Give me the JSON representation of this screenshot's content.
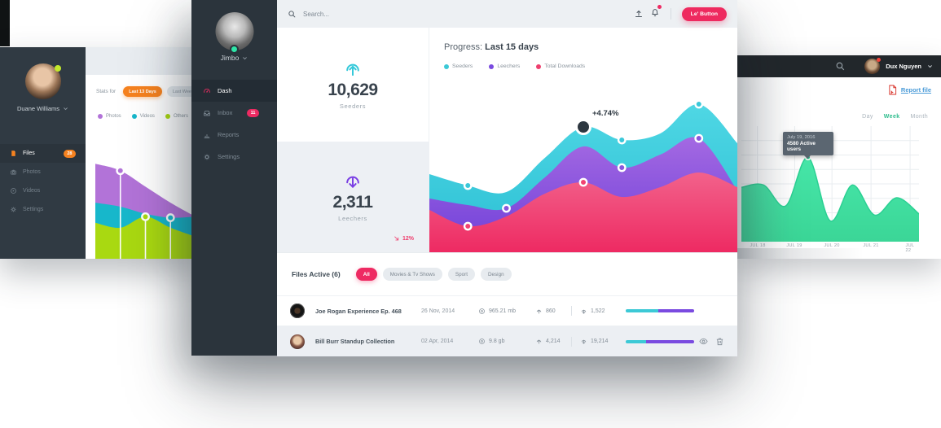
{
  "colors": {
    "accent_pink": "#ee2a62",
    "accent_cyan": "#3cc9d6",
    "accent_purple": "#7a4be0",
    "accent_orange": "#f6821f",
    "accent_green": "#3fe0a3",
    "accent_lime": "#a9d911",
    "sidebar_dark": "#2b343c",
    "header_dark": "#22272b"
  },
  "back_left_panel": {
    "user": {
      "name": "Duane Williams"
    },
    "menu": [
      {
        "label": "Files",
        "badge": "28",
        "icon": "file-icon"
      },
      {
        "label": "Photos",
        "icon": "camera-icon"
      },
      {
        "label": "Videos",
        "icon": "play-circle-icon"
      },
      {
        "label": "Settings",
        "icon": "gear-icon"
      }
    ],
    "stats_for": "Stats for",
    "range_buttons": [
      {
        "label": "Last 13 Days",
        "active": true
      },
      {
        "label": "Last Week",
        "active": false
      }
    ],
    "legend": [
      {
        "label": "Photos",
        "color": "#b273d8"
      },
      {
        "label": "Videos",
        "color": "#17b7cb"
      },
      {
        "label": "Others",
        "color": "#a9d911"
      }
    ]
  },
  "main_panel": {
    "sidebar": {
      "user": "Jimbo",
      "menu": [
        {
          "label": "Dash",
          "icon": "gauge-icon",
          "active": true
        },
        {
          "label": "Inbox",
          "icon": "inbox-icon",
          "badge": "11"
        },
        {
          "label": "Reports",
          "icon": "bar-chart-icon"
        },
        {
          "label": "Settings",
          "icon": "gear-icon"
        }
      ]
    },
    "topbar": {
      "search_placeholder": "Search...",
      "action_button": "Le' Button"
    },
    "stats": {
      "seeders_value": "10,629",
      "seeders_label": "Seeders",
      "leechers_value": "2,311",
      "leechers_label": "Leechers",
      "leechers_trend": "12%"
    },
    "progress": {
      "title_prefix": "Progress:",
      "title_range": "Last 15 days",
      "legend": [
        {
          "label": "Seeders",
          "color": "#3cc9d6"
        },
        {
          "label": "Leechers",
          "color": "#7a4be0"
        },
        {
          "label": "Total Downloads",
          "color": "#ee3f6e"
        }
      ],
      "annotation": "+4.74%"
    },
    "files": {
      "title": "Files Active (6)",
      "filters": [
        {
          "label": "All",
          "active": true
        },
        {
          "label": "Movies & Tv Shows",
          "active": false
        },
        {
          "label": "Sport",
          "active": false
        },
        {
          "label": "Design",
          "active": false
        }
      ],
      "rows": [
        {
          "name": "Joe Rogan Experience Ep. 468",
          "date": "26 Nov, 2014",
          "size": "965.21 mb",
          "uploads": "860",
          "downloads": "1,522",
          "bar_cyan_pct": 48
        },
        {
          "name": "Bill Burr Standup Collection",
          "date": "02 Apr, 2014",
          "size": "9.8 gb",
          "uploads": "4,214",
          "downloads": "19,214",
          "bar_cyan_pct": 30
        }
      ]
    }
  },
  "right_panel": {
    "user": "Dux Nguyen",
    "report_link": "Report file",
    "tabs": [
      {
        "label": "Day",
        "active": false
      },
      {
        "label": "Week",
        "active": true
      },
      {
        "label": "Month",
        "active": false
      }
    ],
    "tooltip": {
      "date": "July 19, 2016",
      "value": "4580 Active users"
    },
    "x_labels": [
      "JUL 18",
      "JUL 19",
      "JUL 20",
      "JUL 21",
      "JUL 22"
    ]
  },
  "chart_data": [
    {
      "id": "media-stats-area",
      "type": "area",
      "title": "Stats for Last 13 Days",
      "legend": [
        "Photos",
        "Videos",
        "Others"
      ],
      "legend_position": "top",
      "ylim": [
        0,
        100
      ],
      "series": [
        {
          "name": "Photos",
          "color": "#b273d8",
          "values": [
            95,
            88,
            72,
            56,
            42
          ],
          "markers": [
            1
          ],
          "marker_style": "lollipop"
        },
        {
          "name": "Videos",
          "color": "#17b7cb",
          "values": [
            56,
            52,
            45,
            41,
            42
          ],
          "markers": [
            3
          ],
          "marker_style": "lollipop"
        },
        {
          "name": "Others",
          "color": "#a9d911",
          "values": [
            36,
            31,
            42,
            31,
            22
          ],
          "markers": [
            2
          ],
          "marker_style": "lollipop"
        }
      ]
    },
    {
      "id": "progress-last-15-days",
      "type": "area",
      "title": "Progress: Last 15 days",
      "legend": [
        "Seeders",
        "Leechers",
        "Total Downloads"
      ],
      "legend_position": "top",
      "ylim": [
        0,
        100
      ],
      "series": [
        {
          "name": "Seeders",
          "color": "#3bc8d9",
          "gradient": [
            "#4fd7e4",
            "#2bbfd4"
          ],
          "values": [
            48,
            41,
            37,
            58,
            77,
            69,
            73,
            91,
            67
          ],
          "markers": [
            1,
            5,
            7
          ],
          "annotation": {
            "index": 4,
            "label": "+4.74%"
          }
        },
        {
          "name": "Leechers",
          "color": "#8a57dd",
          "gradient": [
            "#a469e2",
            "#6e3fd9"
          ],
          "values": [
            33,
            29,
            27,
            46,
            65,
            52,
            60,
            70,
            38
          ],
          "markers": [
            2,
            5,
            7
          ]
        },
        {
          "name": "Total Downloads",
          "color": "#f14372",
          "gradient": [
            "#f2628b",
            "#ee2a62"
          ],
          "values": [
            26,
            16,
            22,
            36,
            43,
            34,
            40,
            49,
            40
          ],
          "markers": [
            1,
            4
          ]
        }
      ]
    },
    {
      "id": "active-users-week",
      "type": "area",
      "title": "Active users - Week",
      "categories": [
        "JUL 18",
        "JUL 19",
        "JUL 20",
        "JUL 21",
        "JUL 22"
      ],
      "ylim": [
        0,
        100
      ],
      "grid": {
        "h_lines": 8,
        "v_fracs": [
          0.09,
          0.3,
          0.51,
          0.73,
          0.95
        ]
      },
      "tooltip": {
        "date": "July 19, 2016",
        "value": "4580 Active users",
        "point_index": 3
      },
      "series": [
        {
          "name": "Active users",
          "color": "#23c68b",
          "gradient": [
            "#47e7a9",
            "#3bd697"
          ],
          "stroke": "#2bd093",
          "values": [
            47,
            49,
            31,
            73,
            18,
            49,
            23,
            38,
            24
          ],
          "markers": [
            3
          ],
          "marker_r": 3
        }
      ]
    }
  ]
}
